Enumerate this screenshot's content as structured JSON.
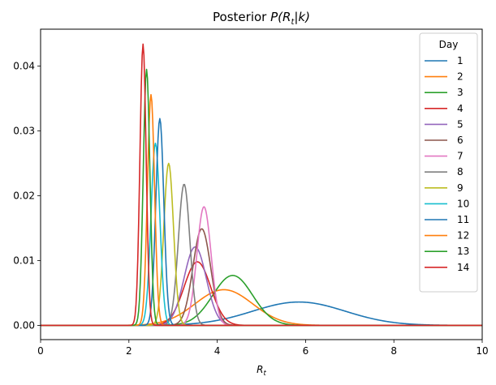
{
  "chart_data": {
    "type": "line",
    "title_prefix": "Posterior ",
    "title_math": "P(R",
    "title_math_sub": "t",
    "title_math_end": "|k)",
    "xlabel_main": "R",
    "xlabel_sub": "t",
    "ylabel": "",
    "xlim": [
      0,
      10
    ],
    "ylim": [
      -0.0022,
      0.0457
    ],
    "xticks": [
      "0",
      "2",
      "4",
      "6",
      "8",
      "10"
    ],
    "yticks": [
      "0.00",
      "0.01",
      "0.02",
      "0.03",
      "0.04"
    ],
    "grid": false,
    "legend_title": "Day",
    "legend_position": "top-right",
    "series": [
      {
        "name": "1",
        "color": "#1f77b4",
        "peak_x": 5.85,
        "peak_y": 0.0036,
        "spread": 1.05
      },
      {
        "name": "2",
        "color": "#ff7f0e",
        "peak_x": 4.15,
        "peak_y": 0.0055,
        "spread": 0.65
      },
      {
        "name": "3",
        "color": "#2ca02c",
        "peak_x": 4.35,
        "peak_y": 0.0077,
        "spread": 0.45
      },
      {
        "name": "4",
        "color": "#d62728",
        "peak_x": 3.55,
        "peak_y": 0.0098,
        "spread": 0.3
      },
      {
        "name": "5",
        "color": "#9467bd",
        "peak_x": 3.5,
        "peak_y": 0.0121,
        "spread": 0.25
      },
      {
        "name": "6",
        "color": "#8c564b",
        "peak_x": 3.65,
        "peak_y": 0.0149,
        "spread": 0.2
      },
      {
        "name": "7",
        "color": "#e377c2",
        "peak_x": 3.7,
        "peak_y": 0.0183,
        "spread": 0.16
      },
      {
        "name": "8",
        "color": "#7f7f7f",
        "peak_x": 3.25,
        "peak_y": 0.0218,
        "spread": 0.13
      },
      {
        "name": "9",
        "color": "#bcbd22",
        "peak_x": 2.9,
        "peak_y": 0.025,
        "spread": 0.11
      },
      {
        "name": "10",
        "color": "#17becf",
        "peak_x": 2.6,
        "peak_y": 0.0281,
        "spread": 0.1
      },
      {
        "name": "11",
        "color": "#1f77b4",
        "peak_x": 2.7,
        "peak_y": 0.0319,
        "spread": 0.09
      },
      {
        "name": "12",
        "color": "#ff7f0e",
        "peak_x": 2.5,
        "peak_y": 0.0356,
        "spread": 0.08
      },
      {
        "name": "13",
        "color": "#2ca02c",
        "peak_x": 2.4,
        "peak_y": 0.0395,
        "spread": 0.075
      },
      {
        "name": "14",
        "color": "#d62728",
        "peak_x": 2.32,
        "peak_y": 0.0434,
        "spread": 0.07
      }
    ]
  }
}
